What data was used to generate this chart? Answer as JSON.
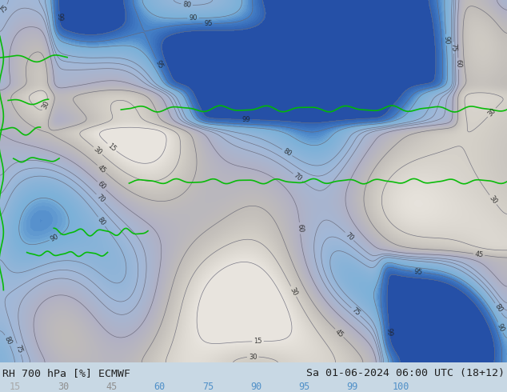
{
  "title_left": "RH 700 hPa [%] ECMWF",
  "title_right": "Sa 01-06-2024 06:00 UTC (18+12)",
  "legend_values": [
    15,
    30,
    45,
    60,
    75,
    90,
    95,
    99,
    100
  ],
  "legend_colors_display": [
    "#c8c8c8",
    "#b4b4b4",
    "#a0a0b8",
    "#87b4d8",
    "#64a0d0",
    "#4682c8",
    "#3264b4",
    "#1e46a0",
    "#0a2878"
  ],
  "legend_text_colors": [
    "#a8a8a8",
    "#909090",
    "#909090",
    "#5090c8",
    "#5090c8",
    "#5090c8",
    "#5090c8",
    "#5090c8",
    "#5090c8"
  ],
  "colormap_breakpoints": [
    15,
    30,
    45,
    60,
    75,
    90,
    95,
    99,
    100
  ],
  "colormap_colors": [
    "#e8e4de",
    "#d4d0c8",
    "#c0bcb8",
    "#b0b0c4",
    "#a0b8d8",
    "#7ab0d8",
    "#4682c8",
    "#3264b4",
    "#1e46a0"
  ],
  "bg_color": "#c8d8e4",
  "fig_width": 6.34,
  "fig_height": 4.9,
  "dpi": 100,
  "label_fontsize": 9.5,
  "legend_fontsize": 8.5,
  "contour_color": "#686878",
  "contour_linewidth": 0.5,
  "clabel_fontsize": 6,
  "border_color": "#00bb00",
  "border_linewidth": 1.2
}
